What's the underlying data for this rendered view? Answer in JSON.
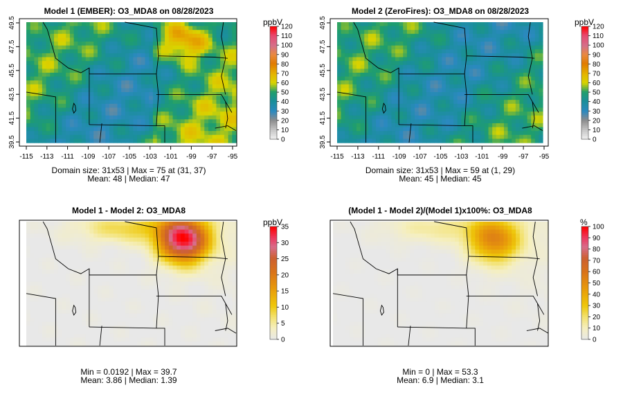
{
  "chart_data": [
    {
      "type": "heatmap",
      "title": "Model 1 (EMBER): O3_MDA8 on 08/28/2023",
      "unit": "ppbV",
      "xticks": [
        "-115",
        "-113",
        "-111",
        "-109",
        "-107",
        "-105",
        "-103",
        "-101",
        "-99",
        "-97",
        "-95"
      ],
      "yticks": [
        "39.5",
        "41.5",
        "43.5",
        "45.5",
        "47.5",
        "49.5"
      ],
      "xlim": [
        -115.3,
        -94.6
      ],
      "ylim": [
        39.4,
        49.7
      ],
      "legend_ticks": [
        "0",
        "10",
        "20",
        "30",
        "40",
        "50",
        "60",
        "70",
        "80",
        "90",
        "100",
        "110",
        "120"
      ],
      "legend_range": [
        0,
        120
      ],
      "stats_line1": "Domain size: 31x53 | Max = 75 at (31, 37)",
      "stats_line2": "Mean: 48 |  Median: 47"
    },
    {
      "type": "heatmap",
      "title": "Model 2 (ZeroFires): O3_MDA8 on 08/28/2023",
      "unit": "ppbV",
      "xticks": [
        "-115",
        "-113",
        "-111",
        "-109",
        "-107",
        "-105",
        "-103",
        "-101",
        "-99",
        "-97",
        "-95"
      ],
      "yticks": [
        "39.5",
        "41.5",
        "43.5",
        "45.5",
        "47.5",
        "49.5"
      ],
      "xlim": [
        -115.3,
        -94.6
      ],
      "ylim": [
        39.4,
        49.7
      ],
      "legend_ticks": [
        "0",
        "10",
        "20",
        "30",
        "40",
        "50",
        "60",
        "70",
        "80",
        "90",
        "100",
        "110",
        "120"
      ],
      "legend_range": [
        0,
        120
      ],
      "stats_line1": "Domain size: 31x53 | Max = 59 at (1, 29)",
      "stats_line2": "Mean: 45 |  Median: 45"
    },
    {
      "type": "heatmap",
      "title": "Model 1 - Model 2: O3_MDA8",
      "unit": "ppbV",
      "legend_ticks": [
        "0",
        "5",
        "10",
        "15",
        "20",
        "25",
        "30",
        "35"
      ],
      "legend_range": [
        0,
        35
      ],
      "stats_line1": "Min = 0.0192 | Max = 39.7",
      "stats_line2": "Mean: 3.86 |  Median: 1.39"
    },
    {
      "type": "heatmap",
      "title": "(Model 1 - Model 2)/(Model 1)x100%: O3_MDA8",
      "unit": "%",
      "legend_ticks": [
        "0",
        "10",
        "20",
        "30",
        "40",
        "50",
        "60",
        "70",
        "80",
        "90",
        "100"
      ],
      "legend_range": [
        0,
        100
      ],
      "stats_line1": "Min = 0 | Max = 53.3",
      "stats_line2": "Mean: 6.9 |  Median: 3.1"
    }
  ]
}
